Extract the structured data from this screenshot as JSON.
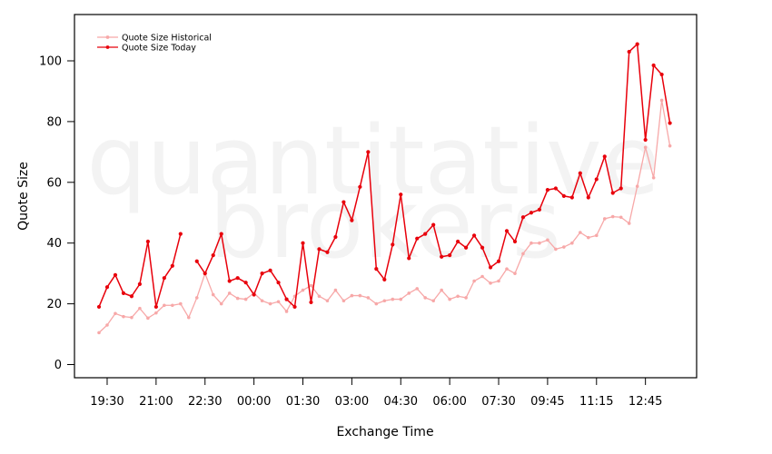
{
  "chart_data": {
    "type": "line",
    "watermark": [
      "quantitative",
      "brokers"
    ],
    "xlabel": "Exchange Time",
    "ylabel": "Quote Size",
    "ylim": [
      -5,
      115
    ],
    "yticks": [
      0,
      20,
      40,
      60,
      80,
      100
    ],
    "xtick_labels": [
      "19:30",
      "21:00",
      "22:30",
      "00:00",
      "01:30",
      "03:00",
      "04:30",
      "06:00",
      "07:30",
      "09:45",
      "11:15",
      "12:45"
    ],
    "xtick_index": [
      1,
      7,
      13,
      19,
      25,
      31,
      37,
      43,
      49,
      55,
      61,
      67
    ],
    "grid": false,
    "legend_position": "top-left",
    "series": [
      {
        "name": "Quote Size Historical",
        "color": "#f7a8a8",
        "values": [
          10.5,
          13,
          16.8,
          15.8,
          15.5,
          18.5,
          15.3,
          17,
          19.5,
          19.5,
          20,
          15.5,
          22,
          30,
          23,
          20,
          23.5,
          21.8,
          21.5,
          23.5,
          21,
          20,
          20.7,
          17.5,
          22.5,
          24.5,
          26,
          22.5,
          21,
          24.5,
          21,
          22.7,
          22.7,
          22,
          20,
          21,
          21.5,
          21.5,
          23.5,
          25,
          22,
          21,
          24.5,
          21.5,
          22.5,
          22,
          27.5,
          29,
          26.8,
          27.5,
          31.5,
          30,
          36.5,
          40,
          40,
          41,
          38,
          38.7,
          40,
          43.5,
          41.8,
          42.5,
          48,
          48.7,
          48.5,
          46.5,
          58.7,
          71.5,
          61.5,
          87,
          72
        ]
      },
      {
        "name": "Quote Size Today",
        "color": "#e8000b",
        "values": [
          19,
          25.5,
          29.5,
          23.5,
          22.5,
          26.5,
          40.5,
          19,
          28.5,
          32.5,
          43,
          null,
          34,
          30,
          36,
          43,
          27.5,
          28.5,
          27,
          23,
          30,
          31,
          27,
          21.5,
          19,
          40,
          20.5,
          38,
          37,
          42,
          53.5,
          47.5,
          58.5,
          70,
          31.5,
          28,
          39.5,
          56,
          35,
          41.5,
          43,
          46,
          35.5,
          36,
          40.5,
          38.5,
          42.5,
          38.5,
          32,
          34,
          44,
          40.5,
          48.5,
          50,
          51,
          57.5,
          58,
          55.5,
          55,
          63,
          55,
          61,
          68.5,
          56.5,
          58,
          103,
          105.5,
          74,
          98.5,
          95.5,
          79.5
        ]
      }
    ]
  }
}
